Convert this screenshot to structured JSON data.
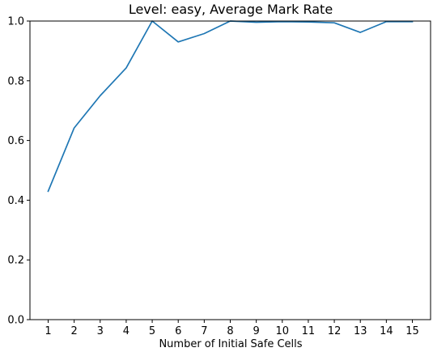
{
  "chart_data": {
    "type": "line",
    "title": "Level: easy, Average Mark Rate",
    "xlabel": "Number of Initial Safe Cells",
    "ylabel": "",
    "x": [
      1,
      2,
      3,
      4,
      5,
      6,
      7,
      8,
      9,
      10,
      11,
      12,
      13,
      14,
      15
    ],
    "series": [
      {
        "values": [
          0.43,
          0.642,
          0.75,
          0.843,
          1.0,
          0.93,
          0.958,
          1.0,
          0.996,
          0.998,
          0.997,
          0.994,
          0.962,
          0.998,
          0.998
        ],
        "color": "#1f77b4"
      }
    ],
    "xlim": [
      0.3,
      15.7
    ],
    "ylim": [
      0.0,
      1.0
    ],
    "xticks": [
      1,
      2,
      3,
      4,
      5,
      6,
      7,
      8,
      9,
      10,
      11,
      12,
      13,
      14,
      15
    ],
    "yticks": [
      0.0,
      0.2,
      0.4,
      0.6,
      0.8,
      1.0
    ],
    "grid": false,
    "legend": "none"
  }
}
